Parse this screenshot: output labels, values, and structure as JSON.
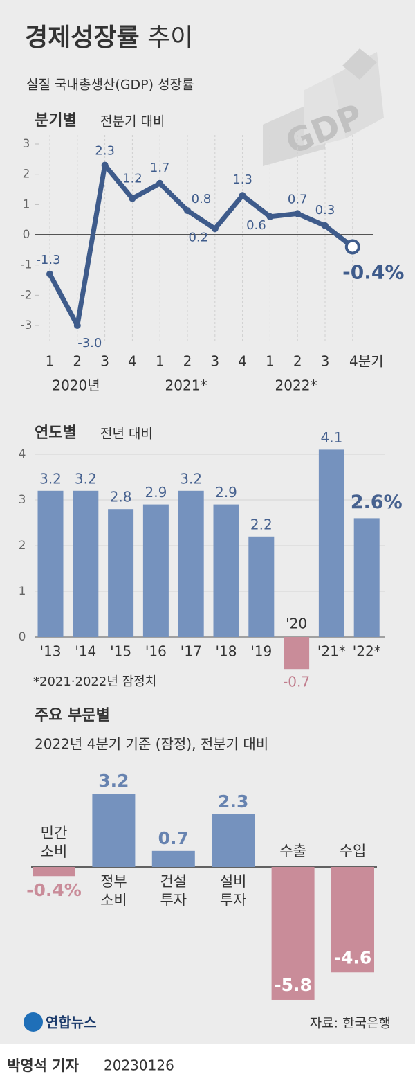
{
  "header": {
    "title": "경제성장률",
    "title_2": "추이",
    "subtitle": "실질 국내총생산(GDP) 성장률",
    "decor": "GDP"
  },
  "chart_data": [
    {
      "type": "line",
      "title": "분기별",
      "subtitle": "전분기 대비",
      "color": "#3e5b8b",
      "categories": [
        "1",
        "2",
        "3",
        "4",
        "1",
        "2",
        "3",
        "4",
        "1",
        "2",
        "3",
        "4분기"
      ],
      "year_labels": [
        "2020년",
        "2021*",
        "2022*"
      ],
      "values": [
        -1.3,
        -3.0,
        2.3,
        1.2,
        1.7,
        0.8,
        0.2,
        1.3,
        0.6,
        0.7,
        0.3,
        -0.4
      ],
      "value_labels": [
        "-1.3",
        "-3.0",
        "2.3",
        "1.2",
        "1.7",
        "0.8",
        "0.2",
        "1.3",
        "0.6",
        "0.7",
        "0.3",
        "-0.4%"
      ],
      "ylim": [
        -3,
        3
      ],
      "yticks": [
        -3,
        -2,
        -1,
        0,
        1,
        2,
        3
      ]
    },
    {
      "type": "bar",
      "title": "연도별",
      "subtitle": "전년 대비",
      "color": "#7592be",
      "negative_color": "#c98c99",
      "categories": [
        "'13",
        "'14",
        "'15",
        "'16",
        "'17",
        "'18",
        "'19",
        "'20",
        "'21*",
        "'22*"
      ],
      "values": [
        3.2,
        3.2,
        2.8,
        2.9,
        3.2,
        2.9,
        2.2,
        -0.7,
        4.1,
        2.6
      ],
      "value_labels": [
        "3.2",
        "3.2",
        "2.8",
        "2.9",
        "3.2",
        "2.9",
        "2.2",
        "-0.7",
        "4.1",
        "2.6%"
      ],
      "ylim": [
        -1,
        4
      ],
      "yticks": [
        0,
        1,
        2,
        3,
        4
      ],
      "grid": true,
      "note": "*2021·2022년 잠정치"
    },
    {
      "type": "bar",
      "title": "주요 부문별",
      "subtitle": "2022년 4분기 기준 (잠정), 전분기 대비",
      "color": "#7592be",
      "negative_color": "#c98c99",
      "categories": [
        "민간\n소비",
        "정부\n소비",
        "건설\n투자",
        "설비\n투자",
        "수출",
        "수입"
      ],
      "values": [
        -0.4,
        3.2,
        0.7,
        2.3,
        -5.8,
        -4.6
      ],
      "value_labels": [
        "-0.4%",
        "3.2",
        "0.7",
        "2.3",
        "-5.8",
        "-4.6"
      ],
      "ylim": [
        -6,
        4
      ]
    }
  ],
  "footer": {
    "logo": "연합뉴스",
    "source": "자료: 한국은행",
    "reporter": "박영석 기자",
    "date": "20230126"
  }
}
